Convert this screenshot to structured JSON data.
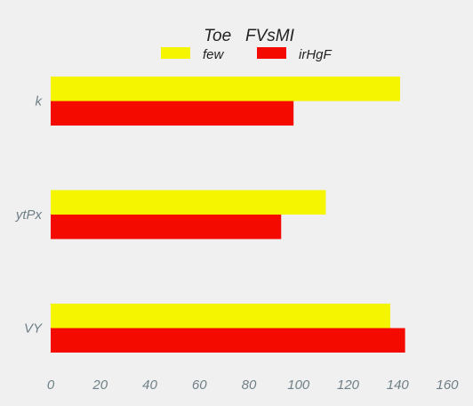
{
  "chart_data": {
    "type": "bar",
    "orientation": "horizontal",
    "title": "Toe   FVsMI",
    "categories": [
      "k",
      "ytPx",
      "VY"
    ],
    "series": [
      {
        "name": "few",
        "color": "#f5f500",
        "values": [
          141,
          111,
          137
        ]
      },
      {
        "name": "irHgF",
        "color": "#f50a00",
        "values": [
          98,
          93,
          143
        ]
      }
    ],
    "xlim": [
      0,
      160
    ],
    "xticks": [
      0,
      20,
      40,
      60,
      80,
      100,
      120,
      140,
      160
    ],
    "xtick_labels": [
      "0",
      "20",
      "40",
      "60",
      "80",
      "100",
      "120",
      "140",
      "160"
    ],
    "grid": false,
    "legend_position": "top"
  }
}
